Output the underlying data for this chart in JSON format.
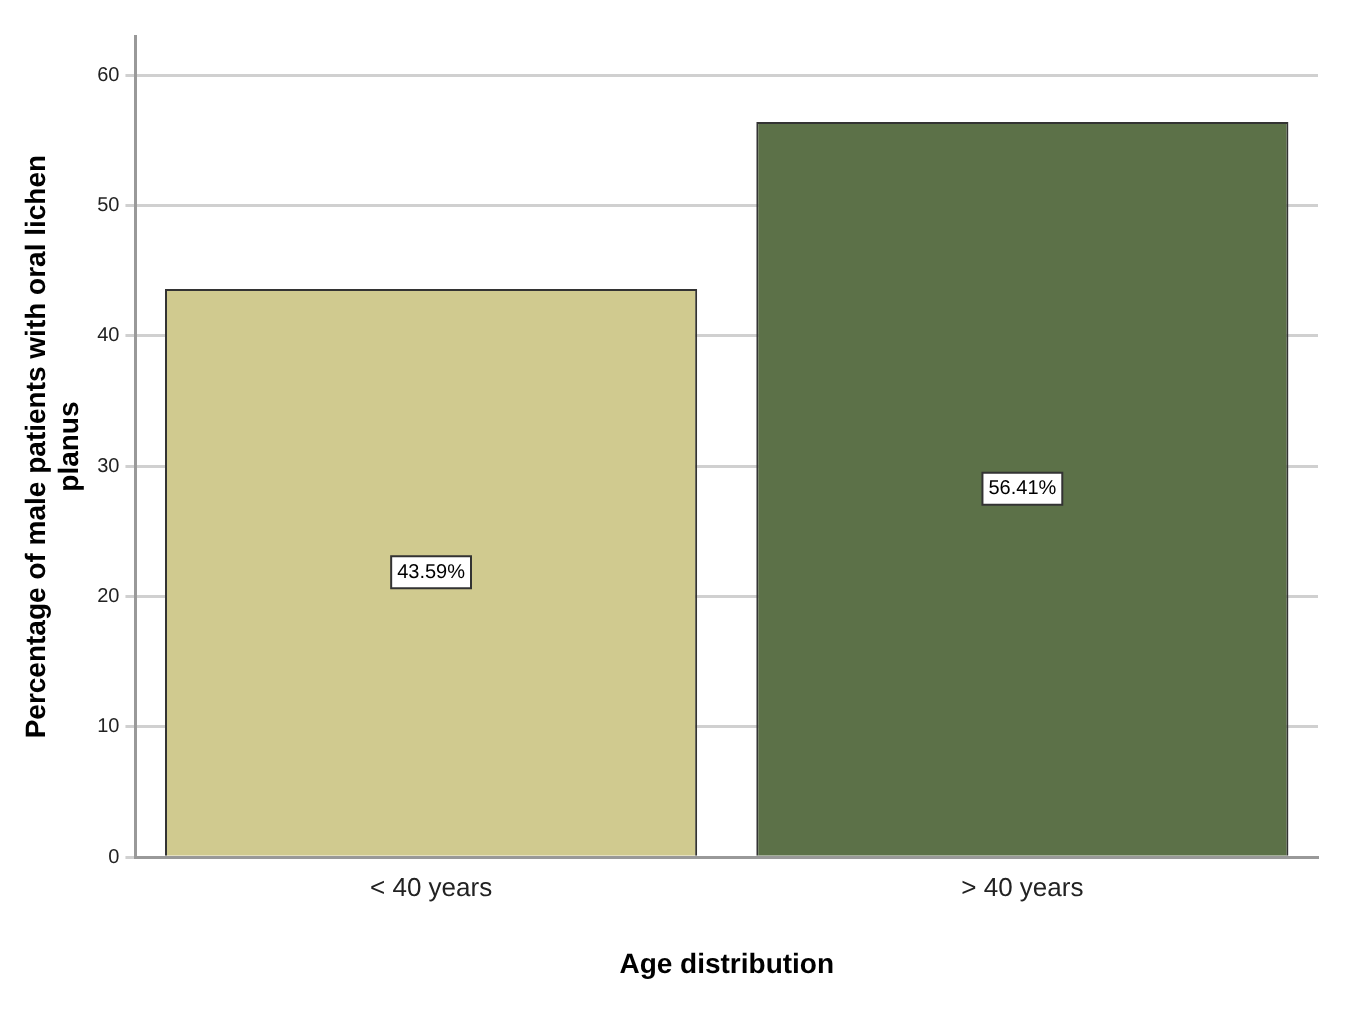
{
  "chart_data": {
    "type": "bar",
    "xlabel": "Age distribution",
    "ylabel": "Percentage of male patients with oral lichen planus",
    "categories": [
      "< 40 years",
      "> 40 years"
    ],
    "values": [
      43.59,
      56.41
    ],
    "colors": [
      "#d0ca8f",
      "#5c7148"
    ],
    "value_labels": [
      "43.59%",
      "56.41%"
    ],
    "ylim": [
      0,
      63
    ],
    "yticks": [
      0,
      10,
      20,
      30,
      40,
      50,
      60
    ],
    "grid": "y",
    "legend": false
  }
}
